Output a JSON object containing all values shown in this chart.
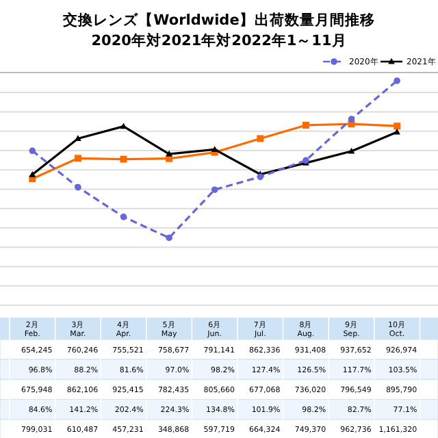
{
  "chart_data": {
    "type": "line",
    "title": "交換レンズ【Worldwide】出荷数量月間推移",
    "subtitle": "2020年対2021年対2022年1～11月",
    "categories": [
      "2月\nFeb.",
      "3月\nMar.",
      "4月\nApr.",
      "5月\nMay",
      "6月\nJun.",
      "7月\nJul.",
      "8月\nAug.",
      "9月\nSep.",
      "10月\nOct."
    ],
    "series": [
      {
        "color": "#ff6a00",
        "marker": "square",
        "line_style": "solid",
        "values": [
          654245,
          760246,
          755521,
          758677,
          791141,
          862336,
          931408,
          937652,
          926974
        ],
        "value_labels": [
          "654,245",
          "760,246",
          "755,521",
          "758,677",
          "791,141",
          "862,336",
          "931,408",
          "937,652",
          "926,974"
        ]
      },
      {
        "name": "2021年",
        "color": "#000000",
        "marker": "triangle",
        "line_style": "solid",
        "values": [
          675948,
          862106,
          925415,
          782435,
          805660,
          677068,
          736020,
          796549,
          895790
        ],
        "value_labels": [
          "675,948",
          "862,106",
          "925,415",
          "782,435",
          "805,660",
          "677,068",
          "736,020",
          "796,549",
          "895,790"
        ]
      },
      {
        "name": "2020年",
        "color": "#6666dd",
        "marker": "circle",
        "line_style": "dashed",
        "values": [
          799031,
          610487,
          457231,
          348868,
          597719,
          664324,
          749370,
          962736,
          1161320
        ],
        "value_labels": [
          "799,031",
          "610,487",
          "457,231",
          "348,868",
          "597,719",
          "664,324",
          "749,370",
          "962,736",
          "1,161,320"
        ]
      }
    ],
    "grid": "y",
    "legend": "top right",
    "annotations": [
      "96.8%",
      "88.2%",
      "81.6%",
      "97.0%",
      "98.2%",
      "127.4%",
      "126.5%",
      "117.7%",
      "103.5%",
      "84.6%",
      "141.2%",
      "202.4%",
      "224.3%",
      "134.8%",
      "101.9%",
      "98.2%",
      "82.7%",
      "77.1%"
    ]
  }
}
